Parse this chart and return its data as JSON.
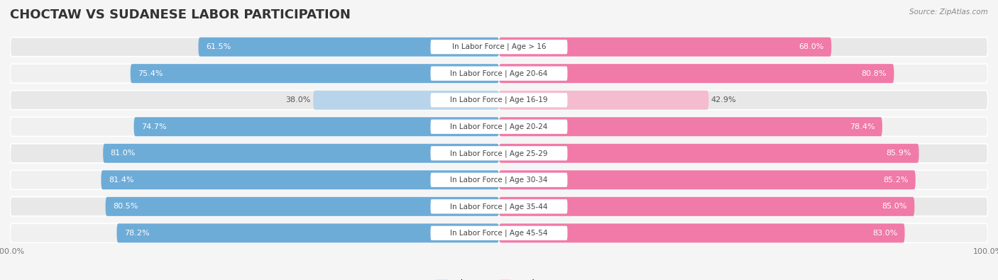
{
  "title": "CHOCTAW VS SUDANESE LABOR PARTICIPATION",
  "source": "Source: ZipAtlas.com",
  "categories": [
    "In Labor Force | Age > 16",
    "In Labor Force | Age 20-64",
    "In Labor Force | Age 16-19",
    "In Labor Force | Age 20-24",
    "In Labor Force | Age 25-29",
    "In Labor Force | Age 30-34",
    "In Labor Force | Age 35-44",
    "In Labor Force | Age 45-54"
  ],
  "choctaw_values": [
    61.5,
    75.4,
    38.0,
    74.7,
    81.0,
    81.4,
    80.5,
    78.2
  ],
  "sudanese_values": [
    68.0,
    80.8,
    42.9,
    78.4,
    85.9,
    85.2,
    85.0,
    83.0
  ],
  "choctaw_color": "#6eacd8",
  "choctaw_light_color": "#b8d4ea",
  "sudanese_color": "#f07aa8",
  "sudanese_light_color": "#f5bcd0",
  "row_bg_color": "#e8e8e8",
  "row_alt_color": "#f0f0f0",
  "background_color": "#f5f5f5",
  "max_val": 100.0,
  "title_fontsize": 13,
  "label_fontsize": 8,
  "value_fontsize": 8
}
